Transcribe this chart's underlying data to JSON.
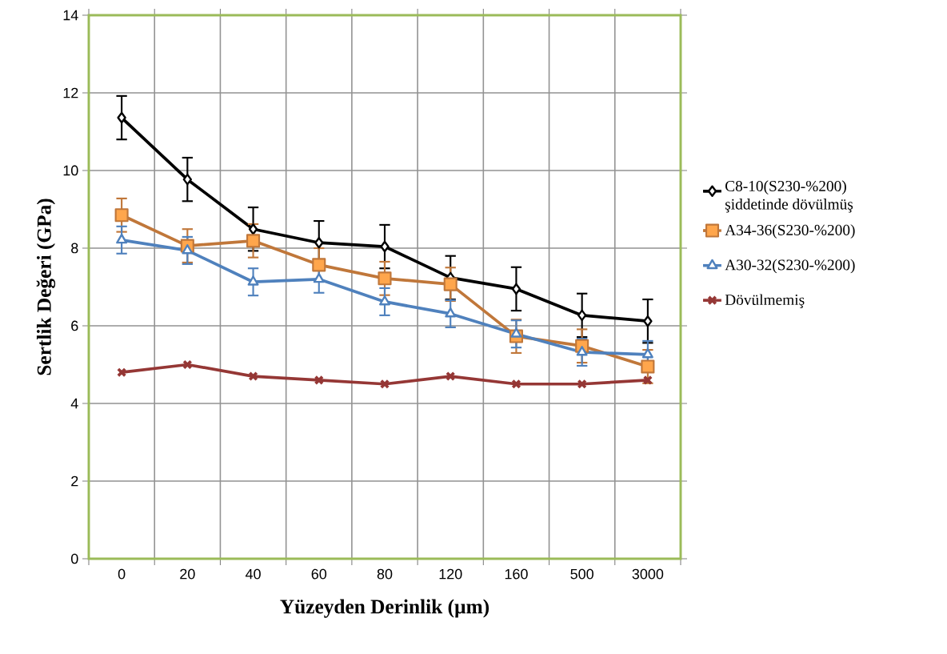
{
  "chart_data": {
    "type": "line",
    "xlabel": "Yüzeyden Derinlik (µm)",
    "ylabel": "Sertlik Değeri (GPa)",
    "categories": [
      "0",
      "20",
      "40",
      "60",
      "80",
      "120",
      "160",
      "500",
      "3000"
    ],
    "ylim": [
      0,
      14
    ],
    "yticks": [
      0,
      2,
      4,
      6,
      8,
      10,
      12,
      14
    ],
    "grid": true,
    "legend": "right",
    "series": [
      {
        "name": "C8-10(S230-%200) şiddetinde dövülmüş",
        "color": "#000000",
        "marker": "diamond",
        "values": [
          11.36,
          9.77,
          8.49,
          8.14,
          8.04,
          7.24,
          6.95,
          6.27,
          6.12
        ],
        "errors": [
          0.56,
          0.56,
          0.56,
          0.56,
          0.56,
          0.56,
          0.56,
          0.56,
          0.56
        ]
      },
      {
        "name": "A34-36(S230-%200)",
        "color": "#c0773a",
        "marker": "square",
        "values": [
          8.85,
          8.06,
          8.19,
          7.57,
          7.22,
          7.07,
          5.73,
          5.48,
          4.95
        ],
        "errors": [
          0.43,
          0.43,
          0.43,
          0.43,
          0.43,
          0.43,
          0.43,
          0.43,
          0.43
        ]
      },
      {
        "name": "A30-32(S230-%200)",
        "color": "#4f81bd",
        "marker": "triangle",
        "values": [
          8.21,
          7.94,
          7.13,
          7.2,
          6.62,
          6.31,
          5.79,
          5.32,
          5.26
        ],
        "errors": [
          0.35,
          0.35,
          0.35,
          0.35,
          0.35,
          0.35,
          0.35,
          0.35,
          0.35
        ]
      },
      {
        "name": "Dövülmemiş",
        "color": "#953735",
        "marker": "cross",
        "values": [
          4.8,
          5.0,
          4.7,
          4.6,
          4.5,
          4.7,
          4.5,
          4.5,
          4.6
        ]
      }
    ]
  }
}
